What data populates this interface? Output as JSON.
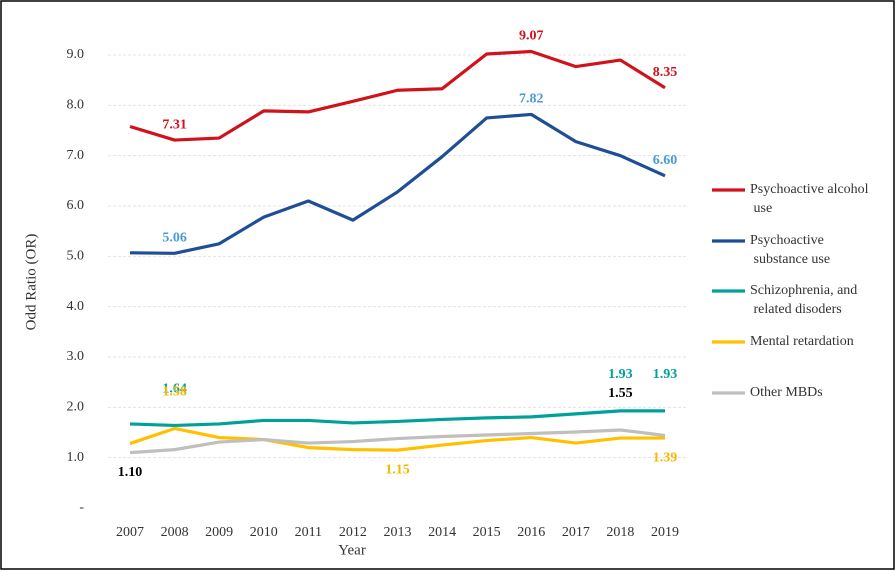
{
  "chart_data": {
    "type": "line",
    "x_label": "Year",
    "y_label": "Odd Ratio (OR)",
    "categories": [
      "2007",
      "2008",
      "2009",
      "2010",
      "2011",
      "2012",
      "2013",
      "2014",
      "2015",
      "2016",
      "2017",
      "2018",
      "2019"
    ],
    "ylim": [
      0,
      9.6
    ],
    "yticks": [
      {
        "value": 0,
        "label": "-"
      },
      {
        "value": 1,
        "label": "1.0"
      },
      {
        "value": 2,
        "label": "2.0"
      },
      {
        "value": 3,
        "label": "3.0"
      },
      {
        "value": 4,
        "label": "4.0"
      },
      {
        "value": 5,
        "label": "5.0"
      },
      {
        "value": 6,
        "label": "6.0"
      },
      {
        "value": 7,
        "label": "7.0"
      },
      {
        "value": 8,
        "label": "8.0"
      },
      {
        "value": 9,
        "label": "9.0"
      }
    ],
    "grid": true,
    "legend": "right",
    "series": [
      {
        "name": "Psychoactive alcohol use",
        "color": "#d0121b",
        "label_color": "#d0121b",
        "values": [
          7.58,
          7.31,
          7.35,
          7.89,
          7.87,
          8.08,
          8.3,
          8.33,
          9.02,
          9.07,
          8.77,
          8.9,
          8.35
        ],
        "value_labels": [
          null,
          "7.31",
          null,
          null,
          null,
          null,
          null,
          null,
          null,
          "9.07",
          null,
          null,
          "8.35"
        ]
      },
      {
        "name": "Psychoactive substance use",
        "color": "#1f4e96",
        "label_color": "#4a9bd5",
        "values": [
          5.07,
          5.06,
          5.25,
          5.78,
          6.1,
          5.72,
          6.28,
          6.98,
          7.75,
          7.82,
          7.28,
          7.0,
          6.6
        ],
        "value_labels": [
          null,
          "5.06",
          null,
          null,
          null,
          null,
          null,
          null,
          null,
          "7.82",
          null,
          null,
          "6.60"
        ]
      },
      {
        "name": "Schizophrenia, and related disoders",
        "color": "#00a19a",
        "label_color": "#00a19a",
        "values": [
          1.67,
          1.64,
          1.67,
          1.74,
          1.74,
          1.69,
          1.72,
          1.76,
          1.79,
          1.81,
          1.87,
          1.93,
          1.93
        ],
        "value_labels": [
          null,
          "1.64",
          null,
          null,
          null,
          null,
          null,
          null,
          null,
          null,
          null,
          "1.93",
          "1.93"
        ]
      },
      {
        "name": "Mental retardation",
        "color": "#ffc000",
        "label_color": "#f5b800",
        "values": [
          1.28,
          1.58,
          1.4,
          1.36,
          1.2,
          1.16,
          1.15,
          1.25,
          1.34,
          1.4,
          1.29,
          1.39,
          1.39
        ],
        "value_labels": [
          null,
          "1.58",
          null,
          null,
          null,
          null,
          "1.15",
          null,
          null,
          null,
          null,
          null,
          "1.39"
        ]
      },
      {
        "name": "Other MBDs",
        "color": "#bfbfbf",
        "label_color": "#000000",
        "values": [
          1.1,
          1.16,
          1.31,
          1.36,
          1.29,
          1.32,
          1.38,
          1.42,
          1.45,
          1.48,
          1.51,
          1.55,
          1.44
        ],
        "value_labels": [
          "1.10",
          null,
          null,
          null,
          null,
          null,
          null,
          null,
          null,
          null,
          null,
          "1.55",
          null
        ]
      }
    ]
  }
}
